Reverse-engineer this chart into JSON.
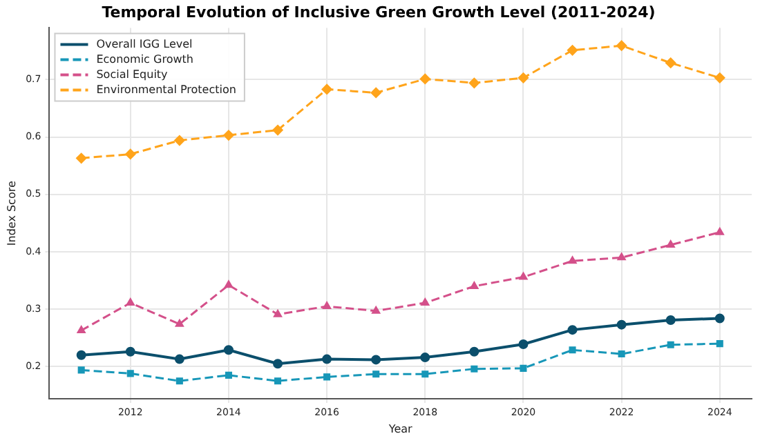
{
  "chart_data": {
    "type": "line",
    "title": "Temporal Evolution of Inclusive Green Growth Level (2011-2024)",
    "xlabel": "Year",
    "ylabel": "Index Score",
    "x": [
      2011,
      2012,
      2013,
      2014,
      2015,
      2016,
      2017,
      2018,
      2019,
      2020,
      2021,
      2022,
      2023,
      2024
    ],
    "xlim": [
      2010.35,
      2024.65
    ],
    "xticks": [
      2012,
      2014,
      2016,
      2018,
      2020,
      2022,
      2024
    ],
    "ylim": [
      0.144,
      0.79
    ],
    "yticks": [
      0.2,
      0.3,
      0.4,
      0.5,
      0.6,
      0.7
    ],
    "grid": true,
    "legend": "top left",
    "series": [
      {
        "name": "Overall IGG Level",
        "color": "#0b4f6c",
        "marker": "circle",
        "line_style": "solid",
        "values": [
          0.22,
          0.226,
          0.213,
          0.229,
          0.205,
          0.213,
          0.212,
          0.216,
          0.226,
          0.239,
          0.264,
          0.273,
          0.281,
          0.284
        ]
      },
      {
        "name": "Economic Growth",
        "color": "#1797b8",
        "marker": "square",
        "line_style": "dashed",
        "values": [
          0.194,
          0.188,
          0.175,
          0.185,
          0.175,
          0.182,
          0.187,
          0.187,
          0.196,
          0.197,
          0.229,
          0.222,
          0.238,
          0.24
        ]
      },
      {
        "name": "Social Equity",
        "color": "#d4508a",
        "marker": "triangle",
        "line_style": "dashed",
        "values": [
          0.263,
          0.311,
          0.274,
          0.342,
          0.291,
          0.305,
          0.297,
          0.311,
          0.34,
          0.356,
          0.384,
          0.39,
          0.412,
          0.434
        ]
      },
      {
        "name": "Environmental Protection",
        "color": "#ffa41b",
        "marker": "diamond",
        "line_style": "dashed",
        "values": [
          0.563,
          0.57,
          0.594,
          0.603,
          0.612,
          0.683,
          0.677,
          0.701,
          0.694,
          0.703,
          0.751,
          0.759,
          0.729,
          0.703
        ]
      }
    ]
  }
}
